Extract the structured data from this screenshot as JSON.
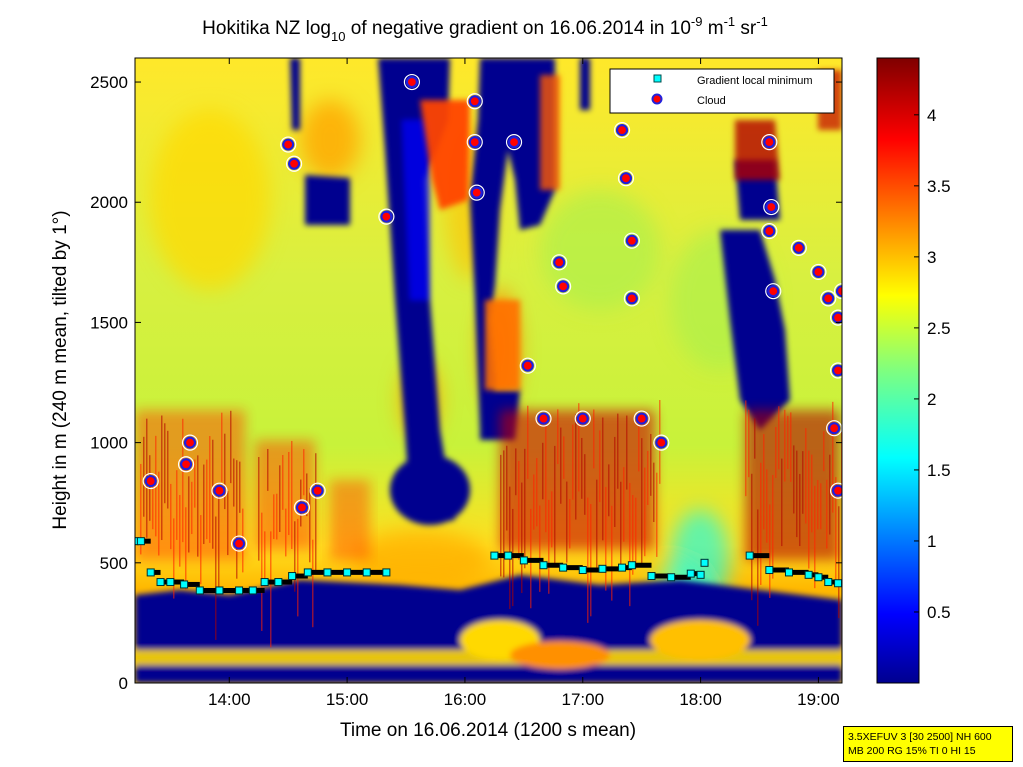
{
  "chart_data": {
    "type": "heatmap",
    "title": {
      "prefix": "Hokitika NZ log",
      "sub": "10",
      "middle": " of negative gradient on 16.06.2014 in 10",
      "exp1": "-9",
      "unit1": " m",
      "exp2": "-1",
      "unit2": " sr",
      "exp3": "-1"
    },
    "xlabel": "Time on 16.06.2014 (1200 s mean)",
    "ylabel": "Height in m (240 m mean, tilted by 1°)",
    "x_range": [
      "13:12",
      "19:12"
    ],
    "y_range": [
      0,
      2600
    ],
    "x_ticks": [
      "14:00",
      "15:00",
      "16:00",
      "17:00",
      "18:00",
      "19:00"
    ],
    "y_ticks": [
      0,
      500,
      1000,
      1500,
      2000,
      2500
    ],
    "colorbar": {
      "colormap": "jet",
      "range": [
        0,
        4.4
      ],
      "ticks": [
        "0.5",
        "1",
        "1.5",
        "2",
        "2.5",
        "3",
        "3.5",
        "4"
      ]
    },
    "legend": {
      "placement": "top-right",
      "entries": [
        {
          "label": "Gradient local minimum",
          "marker": "cyan square",
          "color": "#00ffff"
        },
        {
          "label": "Cloud",
          "marker": "red dot with blue/white edge",
          "color": "#ff0000"
        }
      ]
    },
    "series": [
      {
        "name": "Gradient local minimum",
        "points": [
          [
            "13:12",
            590
          ],
          [
            "13:15",
            590
          ],
          [
            "13:20",
            460
          ],
          [
            "13:25",
            420
          ],
          [
            "13:30",
            420
          ],
          [
            "13:37",
            410
          ],
          [
            "13:45",
            385
          ],
          [
            "13:55",
            385
          ],
          [
            "14:05",
            385
          ],
          [
            "14:12",
            385
          ],
          [
            "14:18",
            420
          ],
          [
            "14:25",
            420
          ],
          [
            "14:32",
            445
          ],
          [
            "14:40",
            460
          ],
          [
            "14:50",
            460
          ],
          [
            "15:00",
            460
          ],
          [
            "15:10",
            460
          ],
          [
            "15:20",
            460
          ],
          [
            "16:15",
            530
          ],
          [
            "16:22",
            530
          ],
          [
            "16:30",
            510
          ],
          [
            "16:40",
            490
          ],
          [
            "16:50",
            480
          ],
          [
            "17:00",
            470
          ],
          [
            "17:10",
            475
          ],
          [
            "17:20",
            480
          ],
          [
            "17:25",
            490
          ],
          [
            "17:35",
            445
          ],
          [
            "17:45",
            440
          ],
          [
            "17:55",
            455
          ],
          [
            "18:00",
            450
          ],
          [
            "18:02",
            500
          ],
          [
            "18:25",
            530
          ],
          [
            "18:35",
            470
          ],
          [
            "18:45",
            460
          ],
          [
            "18:55",
            450
          ],
          [
            "19:00",
            440
          ],
          [
            "19:05",
            420
          ],
          [
            "19:10",
            415
          ]
        ]
      },
      {
        "name": "Cloud",
        "points": [
          [
            "13:20",
            840
          ],
          [
            "13:40",
            1000
          ],
          [
            "13:38",
            910
          ],
          [
            "13:55",
            800
          ],
          [
            "14:05",
            580
          ],
          [
            "14:30",
            2240
          ],
          [
            "14:33",
            2160
          ],
          [
            "14:37",
            730
          ],
          [
            "14:45",
            800
          ],
          [
            "15:20",
            1940
          ],
          [
            "15:33",
            2500
          ],
          [
            "16:05",
            2420
          ],
          [
            "16:05",
            2250
          ],
          [
            "16:06",
            2040
          ],
          [
            "16:25",
            2250
          ],
          [
            "16:32",
            1320
          ],
          [
            "16:40",
            1100
          ],
          [
            "16:48",
            1750
          ],
          [
            "16:50",
            1650
          ],
          [
            "17:00",
            1100
          ],
          [
            "17:20",
            2300
          ],
          [
            "17:22",
            2100
          ],
          [
            "17:25",
            1840
          ],
          [
            "17:25",
            1600
          ],
          [
            "17:30",
            1100
          ],
          [
            "17:40",
            1000
          ],
          [
            "18:35",
            2250
          ],
          [
            "18:36",
            1980
          ],
          [
            "18:35",
            1880
          ],
          [
            "18:37",
            1630
          ],
          [
            "18:50",
            1810
          ],
          [
            "19:00",
            1710
          ],
          [
            "19:05",
            1600
          ],
          [
            "19:10",
            1520
          ],
          [
            "19:10",
            1300
          ],
          [
            "19:12",
            1630
          ],
          [
            "19:08",
            1060
          ],
          [
            "19:10",
            800
          ]
        ]
      }
    ]
  },
  "info_box": {
    "line1": "3.5XEFUV 3 [30 2500] NH 600",
    "line2": "MB 200 RG 15% TI 0 HI 15"
  }
}
